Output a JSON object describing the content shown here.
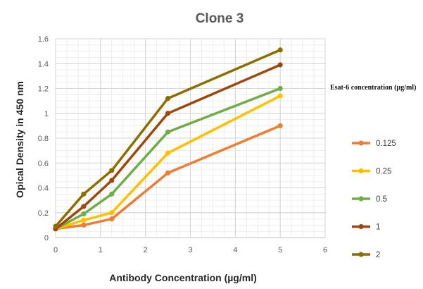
{
  "chart_data": {
    "type": "line",
    "title": "Clone 3",
    "xlabel": "Antibody Concentration (µg/ml)",
    "ylabel": "Opical Density in 450 nm",
    "xlim": [
      0,
      6
    ],
    "ylim": [
      0,
      1.6
    ],
    "x_ticks": [
      "0",
      "1",
      "2",
      "3",
      "4",
      "5",
      "6"
    ],
    "y_ticks": [
      "0",
      "0.2",
      "0.4",
      "0.6",
      "0.8",
      "1",
      "1.2",
      "1.4",
      "1.6"
    ],
    "grid": true,
    "legend_title": "Esat-6 concentration (µg/ml)",
    "legend_position": "right",
    "x": [
      0,
      0.625,
      1.25,
      2.5,
      5
    ],
    "series": [
      {
        "name": "0.125",
        "color": "#ED7D31",
        "values": [
          0.07,
          0.1,
          0.15,
          0.52,
          0.9
        ]
      },
      {
        "name": "0.25",
        "color": "#FFC000",
        "values": [
          0.07,
          0.14,
          0.2,
          0.68,
          1.14
        ]
      },
      {
        "name": "0.5",
        "color": "#70AD47",
        "values": [
          0.07,
          0.19,
          0.35,
          0.85,
          1.2
        ]
      },
      {
        "name": "1",
        "color": "#9E480E",
        "values": [
          0.07,
          0.25,
          0.46,
          1.0,
          1.39
        ]
      },
      {
        "name": "2",
        "color": "#8B6D00",
        "values": [
          0.09,
          0.35,
          0.54,
          1.12,
          1.51
        ]
      }
    ]
  }
}
